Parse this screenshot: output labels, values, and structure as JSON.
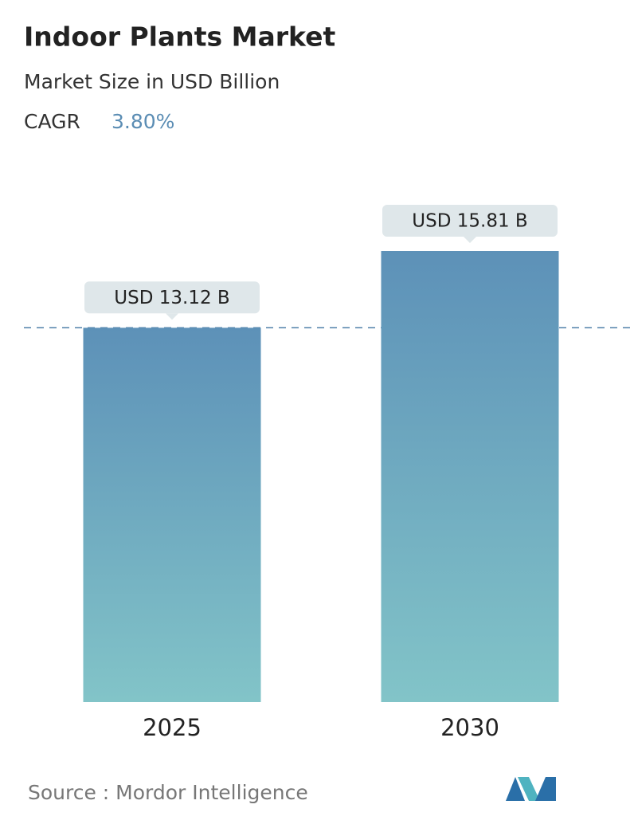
{
  "chart_data": {
    "type": "bar",
    "title": "Indoor Plants Market",
    "subtitle": "Market Size in USD Billion",
    "cagr_label": "CAGR",
    "cagr_value": "3.80%",
    "categories": [
      "2025",
      "2030"
    ],
    "values": [
      13.12,
      15.81
    ],
    "value_labels": [
      "USD 13.12 B",
      "USD 15.81 B"
    ],
    "color_top": "#5d91b8",
    "color_bottom": "#82c4c8",
    "source": "Source : Mordor Intelligence"
  }
}
